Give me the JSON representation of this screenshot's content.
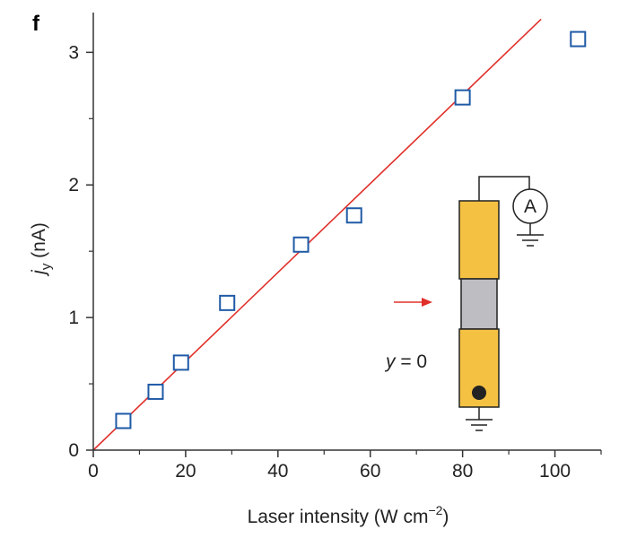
{
  "panel_label": "f",
  "colors": {
    "marker": "#1f5aa6",
    "fit_line": "#e0302a",
    "axis": "#333333",
    "electrode": "#f4c142",
    "channel": "#bdbdc2",
    "arrow": "#e0302a",
    "outline": "#222222"
  },
  "chart_data": {
    "type": "scatter",
    "x_label_main": "Laser intensity (W cm",
    "x_label_sup": "−2",
    "x_label_close": ")",
    "y_label_var": "j",
    "y_label_sub": "y",
    "y_label_unit": " (nA)",
    "xlim": [
      0,
      110
    ],
    "ylim": [
      0,
      3.3
    ],
    "x_ticks": [
      0,
      20,
      40,
      60,
      80,
      100
    ],
    "y_ticks": [
      0,
      1,
      2,
      3
    ],
    "x_tick_labels": [
      "0",
      "20",
      "40",
      "60",
      "80",
      "100"
    ],
    "y_tick_labels": [
      "0",
      "1",
      "2",
      "3"
    ],
    "grid": false,
    "series": [
      {
        "marker": "open-square",
        "points": [
          {
            "x": 6.5,
            "y": 0.22
          },
          {
            "x": 13.5,
            "y": 0.44
          },
          {
            "x": 19.0,
            "y": 0.66
          },
          {
            "x": 29.0,
            "y": 1.11
          },
          {
            "x": 45.0,
            "y": 1.55
          },
          {
            "x": 56.5,
            "y": 1.77
          },
          {
            "x": 80.0,
            "y": 2.66
          },
          {
            "x": 105.0,
            "y": 3.1
          }
        ]
      }
    ],
    "fit_line": {
      "x": [
        0,
        97
      ],
      "y": [
        0,
        3.25
      ]
    }
  },
  "inset": {
    "ammeter_label": "A",
    "position_label_var": "y",
    "position_label_rest": " = 0"
  }
}
